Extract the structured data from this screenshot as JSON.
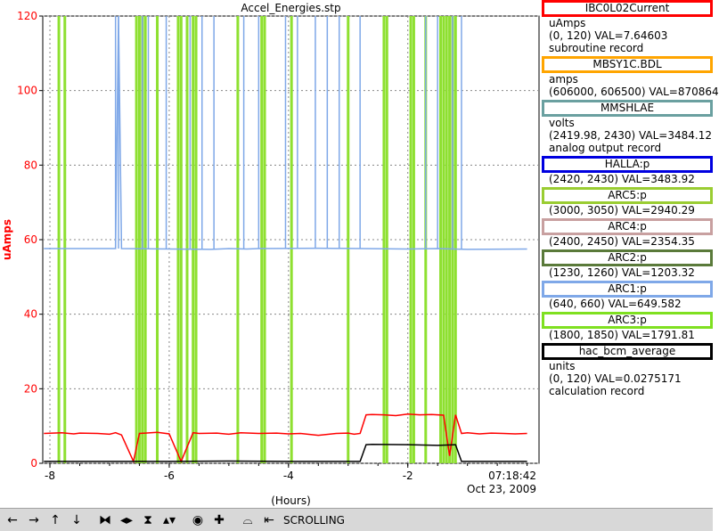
{
  "chart_data": {
    "type": "line",
    "title": "Accel_Energies.stp",
    "xlabel": "(Hours)",
    "ylabel": "uAmps",
    "xlim": [
      -8.12,
      0.2
    ],
    "ylim": [
      0,
      120
    ],
    "x_ticks": [
      -8,
      -6,
      -4,
      -2
    ],
    "x_tick_labels": [
      "-8",
      "-6",
      "-4",
      "-2"
    ],
    "y_ticks": [
      0,
      20,
      40,
      60,
      80,
      100,
      120
    ],
    "y_tick_labels": [
      "0",
      "20",
      "40",
      "60",
      "80",
      "100",
      "120"
    ],
    "end_time": "07:18:42",
    "end_date": "Oct 23, 2009",
    "grid": true,
    "series": [
      {
        "name": "IBC0L02Current",
        "color": "#ff0000",
        "x": [
          -8.1,
          -7.8,
          -7.6,
          -7.5,
          -7.2,
          -7.0,
          -6.9,
          -6.8,
          -6.6,
          -6.5,
          -6.4,
          -6.2,
          -6.0,
          -5.8,
          -5.6,
          -5.5,
          -5.2,
          -5.0,
          -4.8,
          -4.5,
          -4.2,
          -4.0,
          -3.8,
          -3.5,
          -3.2,
          -3.0,
          -2.9,
          -2.8,
          -2.7,
          -2.6,
          -2.4,
          -2.2,
          -2.0,
          -1.8,
          -1.6,
          -1.4,
          -1.3,
          -1.2,
          -1.1,
          -1.0,
          -0.8,
          -0.6,
          -0.4,
          -0.2,
          0.0
        ],
        "y": [
          8.0,
          8.2,
          7.9,
          8.1,
          8.0,
          7.8,
          8.2,
          7.6,
          0.5,
          8.0,
          8.1,
          8.3,
          7.9,
          0.5,
          8.2,
          8.0,
          8.1,
          7.8,
          8.2,
          8.0,
          8.1,
          7.9,
          8.0,
          7.5,
          8.0,
          8.1,
          7.8,
          8.0,
          13.0,
          13.1,
          13.0,
          12.8,
          13.2,
          13.0,
          13.1,
          12.9,
          2.0,
          13.0,
          8.0,
          8.2,
          7.9,
          8.1,
          8.0,
          7.9,
          8.0
        ]
      },
      {
        "name": "MBSY1C.BDL",
        "color": "#ffa500",
        "x": [
          -8.1,
          0.0
        ],
        "y": [
          null,
          null
        ]
      },
      {
        "name": "MMSHLAE",
        "color": "#6aa0a0",
        "x": [
          -8.1,
          0.0
        ],
        "y": [
          null,
          null
        ]
      },
      {
        "name": "HALLA:p",
        "color": "#0000e0",
        "x": [
          -8.1,
          0.0
        ],
        "y": [
          null,
          null
        ]
      },
      {
        "name": "ARC5:p",
        "color": "#9acd32",
        "x": [
          -8.1,
          0.0
        ],
        "y": [
          null,
          null
        ]
      },
      {
        "name": "ARC4:p",
        "color": "#c8a0a0",
        "x": [
          -8.1,
          0.0
        ],
        "y": [
          null,
          null
        ]
      },
      {
        "name": "ARC2:p",
        "color": "#5a7a3a",
        "x": [
          -8.1,
          0.0
        ],
        "y": [
          null,
          null
        ]
      },
      {
        "name": "ARC1:p",
        "color": "#7fa8e8",
        "x": [
          -8.1,
          -6.9,
          -6.85,
          -6.8,
          -5.3,
          -5.0,
          -4.7,
          -4.5,
          -3.5,
          -2.0,
          -1.5,
          -1.0,
          0.0
        ],
        "y": [
          57.6,
          57.6,
          120,
          57.6,
          57.4,
          57.6,
          57.5,
          57.6,
          57.7,
          57.5,
          57.6,
          57.4,
          57.5
        ]
      },
      {
        "name": "ARC3:p",
        "color": "#7fe020",
        "x": [
          -8.1,
          0.0
        ],
        "y": [
          null,
          null
        ]
      },
      {
        "name": "hac_bcm_average",
        "color": "#000000",
        "x": [
          -8.1,
          -7.0,
          -6.0,
          -5.0,
          -4.0,
          -3.0,
          -2.8,
          -2.7,
          -2.6,
          -2.0,
          -1.5,
          -1.2,
          -1.1,
          -0.5,
          0.0
        ],
        "y": [
          0.5,
          0.5,
          0.5,
          0.6,
          0.5,
          0.5,
          0.5,
          5.0,
          5.1,
          5.0,
          4.8,
          5.0,
          0.5,
          0.5,
          0.5
        ]
      }
    ]
  },
  "legend": [
    {
      "name": "IBC0L02Current",
      "color": "#ff0000",
      "lines": [
        "uAmps",
        "(0, 120) VAL=7.64603",
        "subroutine record"
      ]
    },
    {
      "name": "MBSY1C.BDL",
      "color": "#ffa500",
      "lines": [
        "amps",
        "(606000, 606500) VAL=870864"
      ]
    },
    {
      "name": "MMSHLAE",
      "color": "#6aa0a0",
      "lines": [
        "volts",
        "(2419.98, 2430) VAL=3484.12",
        "analog output record"
      ]
    },
    {
      "name": "HALLA:p",
      "color": "#0000e0",
      "lines": [
        "(2420, 2430) VAL=3483.92"
      ]
    },
    {
      "name": "ARC5:p",
      "color": "#9acd32",
      "lines": [
        "(3000, 3050) VAL=2940.29"
      ]
    },
    {
      "name": "ARC4:p",
      "color": "#c8a0a0",
      "lines": [
        "(2400, 2450) VAL=2354.35"
      ]
    },
    {
      "name": "ARC2:p",
      "color": "#5a7a3a",
      "lines": [
        "(1230, 1260) VAL=1203.32"
      ]
    },
    {
      "name": "ARC1:p",
      "color": "#7fa8e8",
      "lines": [
        "(640, 660) VAL=649.582"
      ]
    },
    {
      "name": "ARC3:p",
      "color": "#7fe020",
      "lines": [
        "(1800, 1850) VAL=1791.81"
      ]
    },
    {
      "name": "hac_bcm_average",
      "color": "#000000",
      "lines": [
        "units",
        "(0, 120) VAL=0.0275171",
        "calculation record"
      ]
    }
  ],
  "green_spikes_x": [
    -7.85,
    -7.75,
    -6.55,
    -6.5,
    -6.45,
    -6.4,
    -6.2,
    -5.85,
    -5.8,
    -5.7,
    -5.6,
    -5.55,
    -4.85,
    -4.45,
    -4.4,
    -3.95,
    -3.0,
    -2.4,
    -2.35,
    -1.95,
    -1.9,
    -1.7,
    -1.45,
    -1.4,
    -1.35,
    -1.3,
    -1.25,
    -1.2
  ],
  "blue_spikes_x": [
    -6.9,
    -6.85,
    -6.45,
    -6.35,
    -6.05,
    -5.65,
    -5.45,
    -5.25,
    -4.75,
    -4.5,
    -4.05,
    -3.85,
    -3.55,
    -3.35,
    -3.15,
    -2.8,
    -1.7,
    -1.5,
    -1.25,
    -1.1
  ],
  "toolbar": {
    "status": "SCROLLING",
    "buttons": [
      {
        "icon": "arrow-left-icon",
        "glyph": "←"
      },
      {
        "icon": "arrow-right-icon",
        "glyph": "→"
      },
      {
        "icon": "arrow-up-icon",
        "glyph": "↑"
      },
      {
        "icon": "arrow-down-icon",
        "glyph": "↓"
      },
      {
        "icon": "zoom-horizontal-in-icon",
        "glyph": "⧓"
      },
      {
        "icon": "zoom-horizontal-out-icon",
        "glyph": "◂▸"
      },
      {
        "icon": "zoom-vertical-in-icon",
        "glyph": "⧗"
      },
      {
        "icon": "zoom-vertical-out-icon",
        "glyph": "▴▾"
      },
      {
        "icon": "autoscale-icon",
        "glyph": "◉"
      },
      {
        "icon": "add-icon",
        "glyph": "✚"
      },
      {
        "icon": "chart-area-icon",
        "glyph": "⌓"
      },
      {
        "icon": "jump-to-end-icon",
        "glyph": "⇤"
      }
    ]
  }
}
